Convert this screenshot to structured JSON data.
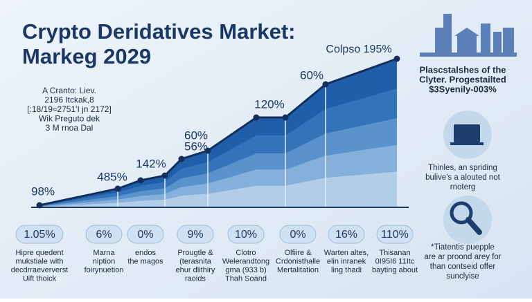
{
  "title": [
    "Crypto Deridatives Market:",
    "Markeg 2029"
  ],
  "note": [
    "A Cranto: Liev.",
    "2196 Itckak,8",
    "[:18/19≈2751'I jn 2172]",
    "Wik Preguto dek",
    "3 M rnoa Dal"
  ],
  "point_labels": [
    "98%",
    "485%",
    "142%",
    "60%",
    "56%",
    "120%",
    "60%",
    "Colpso 195%"
  ],
  "side": [
    [
      "Plascstalshes of the",
      "Clyter. Progestailted",
      "$3Syenily-003%"
    ],
    [
      "Thinles, an spriding",
      "bulive's a alouted not",
      "rnoterg"
    ],
    [
      "*Tiatentis puepple",
      "are ar proond arey for",
      "than contseid offer",
      "sunclyise"
    ]
  ],
  "stats": [
    {
      "value": "1.05%",
      "text": [
        "Hipre quedent",
        "mukstiale with",
        "decdrraeververst",
        "Uift thoick"
      ]
    },
    {
      "value": "6%",
      "text": [
        "Marna",
        "niption",
        "foirynuetion"
      ]
    },
    {
      "value": "0%",
      "text": [
        "endos",
        "the magos"
      ]
    },
    {
      "value": "9%",
      "text": [
        "Prougtle &",
        "(terasnita",
        "ehur dlithiry",
        "raoids"
      ]
    },
    {
      "value": "10%",
      "text": [
        "Clotro",
        "Welerandtong",
        "gma (933 b)",
        "Thah Soand"
      ]
    },
    {
      "value": "0%",
      "text": [
        "Olfiire &",
        "Crdonisthalle",
        "Mertalitation"
      ]
    },
    {
      "value": "16%",
      "text": [
        "Warten altes,",
        "elin inranek",
        "ling thadi"
      ]
    },
    {
      "value": "110%",
      "text": [
        "Thisanan",
        "0I95I6 11Itc",
        "bayting about"
      ]
    }
  ]
}
